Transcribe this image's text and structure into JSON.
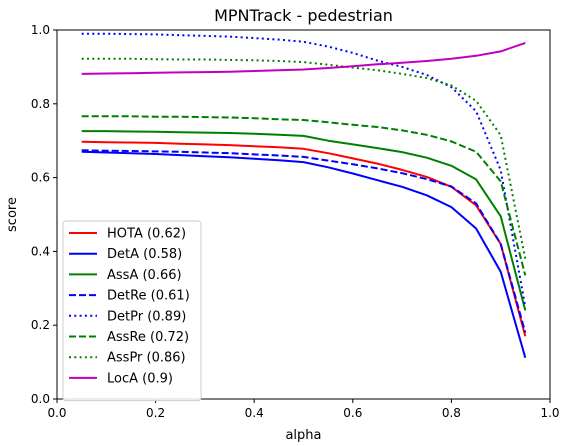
{
  "chart_data": {
    "type": "line",
    "title": "MPNTrack - pedestrian",
    "xlabel": "alpha",
    "ylabel": "score",
    "xlim": [
      0.0,
      1.0
    ],
    "ylim": [
      0.0,
      1.0
    ],
    "xticks": [
      "0.0",
      "0.2",
      "0.4",
      "0.6",
      "0.8",
      "1.0"
    ],
    "yticks": [
      "0.0",
      "0.2",
      "0.4",
      "0.6",
      "0.8",
      "1.0"
    ],
    "grid": false,
    "legend_position": "lower-left",
    "x": [
      0.05,
      0.1,
      0.15,
      0.2,
      0.25,
      0.3,
      0.35,
      0.4,
      0.45,
      0.5,
      0.55,
      0.6,
      0.65,
      0.7,
      0.75,
      0.8,
      0.85,
      0.9,
      0.95
    ],
    "series": [
      {
        "name": "HOTA (0.62)",
        "color": "#ff0000",
        "style": "solid",
        "values": [
          0.697,
          0.696,
          0.695,
          0.694,
          0.692,
          0.69,
          0.688,
          0.685,
          0.682,
          0.678,
          0.666,
          0.652,
          0.638,
          0.621,
          0.602,
          0.575,
          0.525,
          0.42,
          0.17
        ]
      },
      {
        "name": "DetA (0.58)",
        "color": "#0000ff",
        "style": "solid",
        "values": [
          0.67,
          0.668,
          0.666,
          0.664,
          0.661,
          0.658,
          0.655,
          0.651,
          0.647,
          0.642,
          0.628,
          0.611,
          0.593,
          0.575,
          0.552,
          0.52,
          0.462,
          0.345,
          0.112
        ]
      },
      {
        "name": "AssA (0.66)",
        "color": "#008000",
        "style": "solid",
        "values": [
          0.726,
          0.726,
          0.725,
          0.724,
          0.723,
          0.722,
          0.721,
          0.719,
          0.716,
          0.713,
          0.7,
          0.69,
          0.68,
          0.669,
          0.654,
          0.632,
          0.595,
          0.495,
          0.24
        ]
      },
      {
        "name": "DetRe (0.61)",
        "color": "#0000ff",
        "style": "dashed",
        "values": [
          0.674,
          0.673,
          0.672,
          0.671,
          0.67,
          0.668,
          0.666,
          0.663,
          0.66,
          0.656,
          0.646,
          0.636,
          0.625,
          0.612,
          0.596,
          0.576,
          0.53,
          0.42,
          0.18
        ]
      },
      {
        "name": "DetPr (0.89)",
        "color": "#0000ff",
        "style": "dotted",
        "values": [
          0.99,
          0.99,
          0.989,
          0.988,
          0.986,
          0.984,
          0.982,
          0.978,
          0.974,
          0.968,
          0.955,
          0.938,
          0.917,
          0.9,
          0.878,
          0.845,
          0.78,
          0.62,
          0.25
        ]
      },
      {
        "name": "AssRe (0.72)",
        "color": "#008000",
        "style": "dashed",
        "values": [
          0.766,
          0.766,
          0.766,
          0.765,
          0.765,
          0.764,
          0.763,
          0.761,
          0.758,
          0.756,
          0.75,
          0.743,
          0.737,
          0.728,
          0.716,
          0.698,
          0.67,
          0.59,
          0.335
        ]
      },
      {
        "name": "AssPr (0.86)",
        "color": "#008000",
        "style": "dotted",
        "values": [
          0.922,
          0.922,
          0.922,
          0.921,
          0.92,
          0.92,
          0.919,
          0.918,
          0.916,
          0.913,
          0.906,
          0.898,
          0.891,
          0.881,
          0.87,
          0.85,
          0.808,
          0.715,
          0.38
        ]
      },
      {
        "name": "LocA (0.9)",
        "color": "#bf00bf",
        "style": "solid",
        "values": [
          0.881,
          0.882,
          0.883,
          0.884,
          0.885,
          0.886,
          0.887,
          0.889,
          0.891,
          0.893,
          0.897,
          0.902,
          0.907,
          0.911,
          0.916,
          0.922,
          0.93,
          0.942,
          0.965
        ]
      }
    ]
  }
}
